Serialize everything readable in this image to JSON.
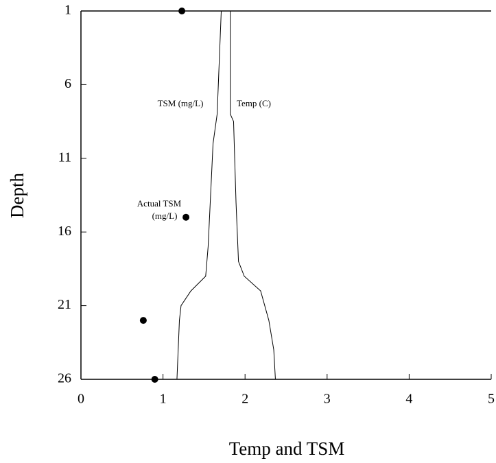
{
  "chart_data": {
    "type": "line",
    "xlabel": "Temp and TSM",
    "ylabel": "Depth",
    "xlim": [
      0,
      5
    ],
    "xticks": [
      0,
      1,
      2,
      3,
      4,
      5
    ],
    "ylim": [
      26,
      1
    ],
    "yticks": [
      1,
      6,
      11,
      16,
      21,
      26
    ],
    "series": [
      {
        "name": "TSM (mg/L)",
        "mode": "line",
        "color": "#000000",
        "values": [
          1.71,
          1.66,
          1.61,
          1.55,
          1.52,
          1.34,
          1.22,
          1.2,
          1.17
        ],
        "depth": [
          1,
          8,
          10,
          17,
          19,
          20,
          21,
          22,
          26
        ]
      },
      {
        "name": "Temp (C)",
        "mode": "line",
        "color": "#000000",
        "values": [
          1.82,
          1.82,
          1.86,
          1.89,
          1.92,
          1.99,
          2.19,
          2.29,
          2.35,
          2.37
        ],
        "depth": [
          1,
          8,
          8.5,
          14,
          18,
          19,
          20,
          22,
          24,
          26
        ]
      },
      {
        "mode": "marker",
        "color": "#000000",
        "values": [
          1.23,
          1.28,
          0.76,
          0.9
        ],
        "depth": [
          1,
          15,
          22,
          26
        ]
      }
    ],
    "annotations": [
      "Actual TSM",
      "(mg/L)"
    ]
  }
}
